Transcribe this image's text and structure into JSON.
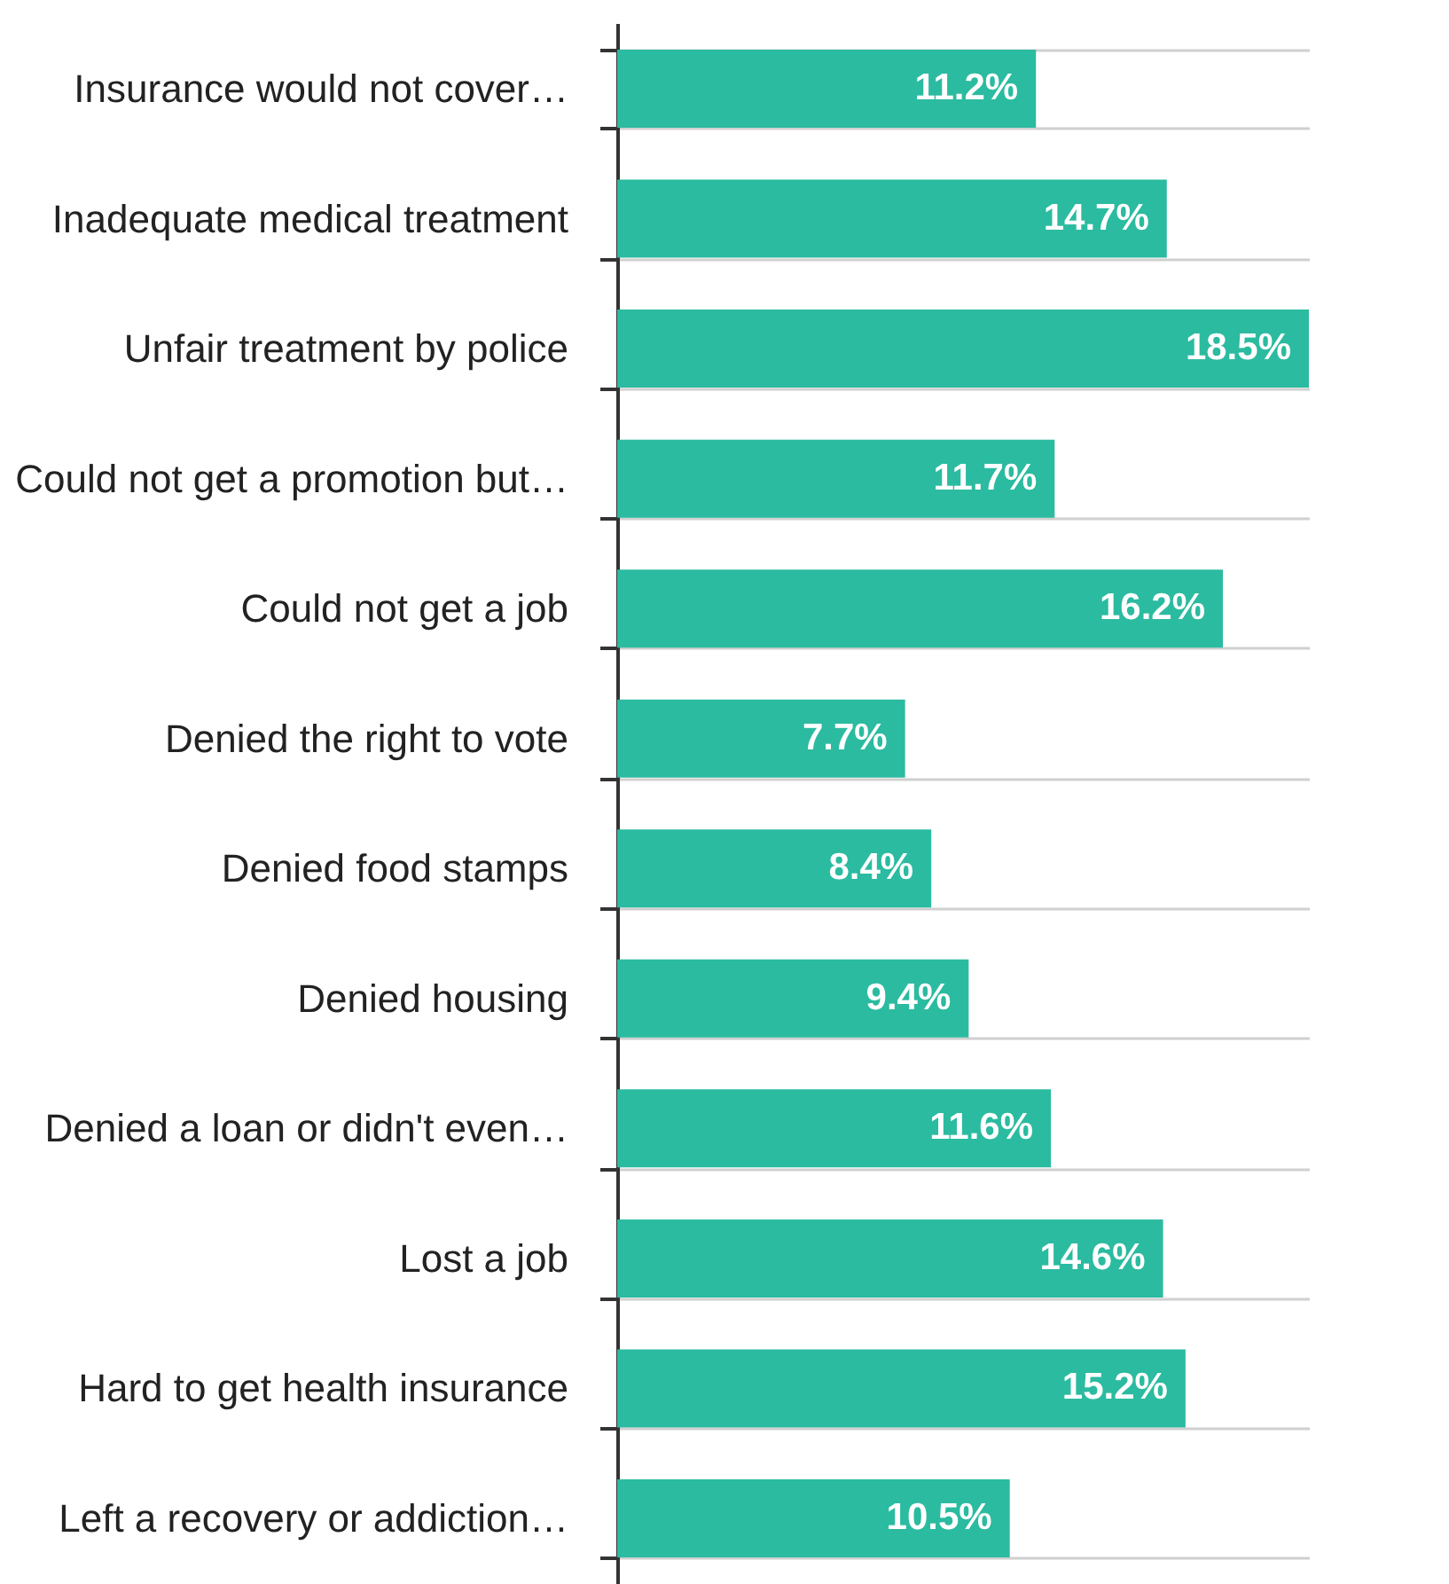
{
  "chart_data": {
    "type": "bar",
    "orientation": "horizontal",
    "grid": "y",
    "value_labels": [
      "11.2%",
      "14.7%",
      "18.5%",
      "11.7%",
      "16.2%",
      "7.7%",
      "8.4%",
      "9.4%",
      "11.6%",
      "14.6%",
      "15.2%",
      "10.5%"
    ],
    "categories": [
      "Insurance would not cover…",
      "Inadequate medical treatment",
      "Unfair treatment by police",
      "Could not get a promotion  but…",
      "Could not get a job",
      "Denied the right to vote",
      "Denied food stamps",
      "Denied housing",
      "Denied a loan or didn't even…",
      "Lost a job",
      "Hard to get health insurance",
      "Left a recovery or addiction…"
    ],
    "values": [
      11.2,
      14.7,
      18.5,
      11.7,
      16.2,
      7.7,
      8.4,
      9.4,
      11.6,
      14.6,
      15.2,
      10.5
    ],
    "color": "#2bbba0"
  }
}
